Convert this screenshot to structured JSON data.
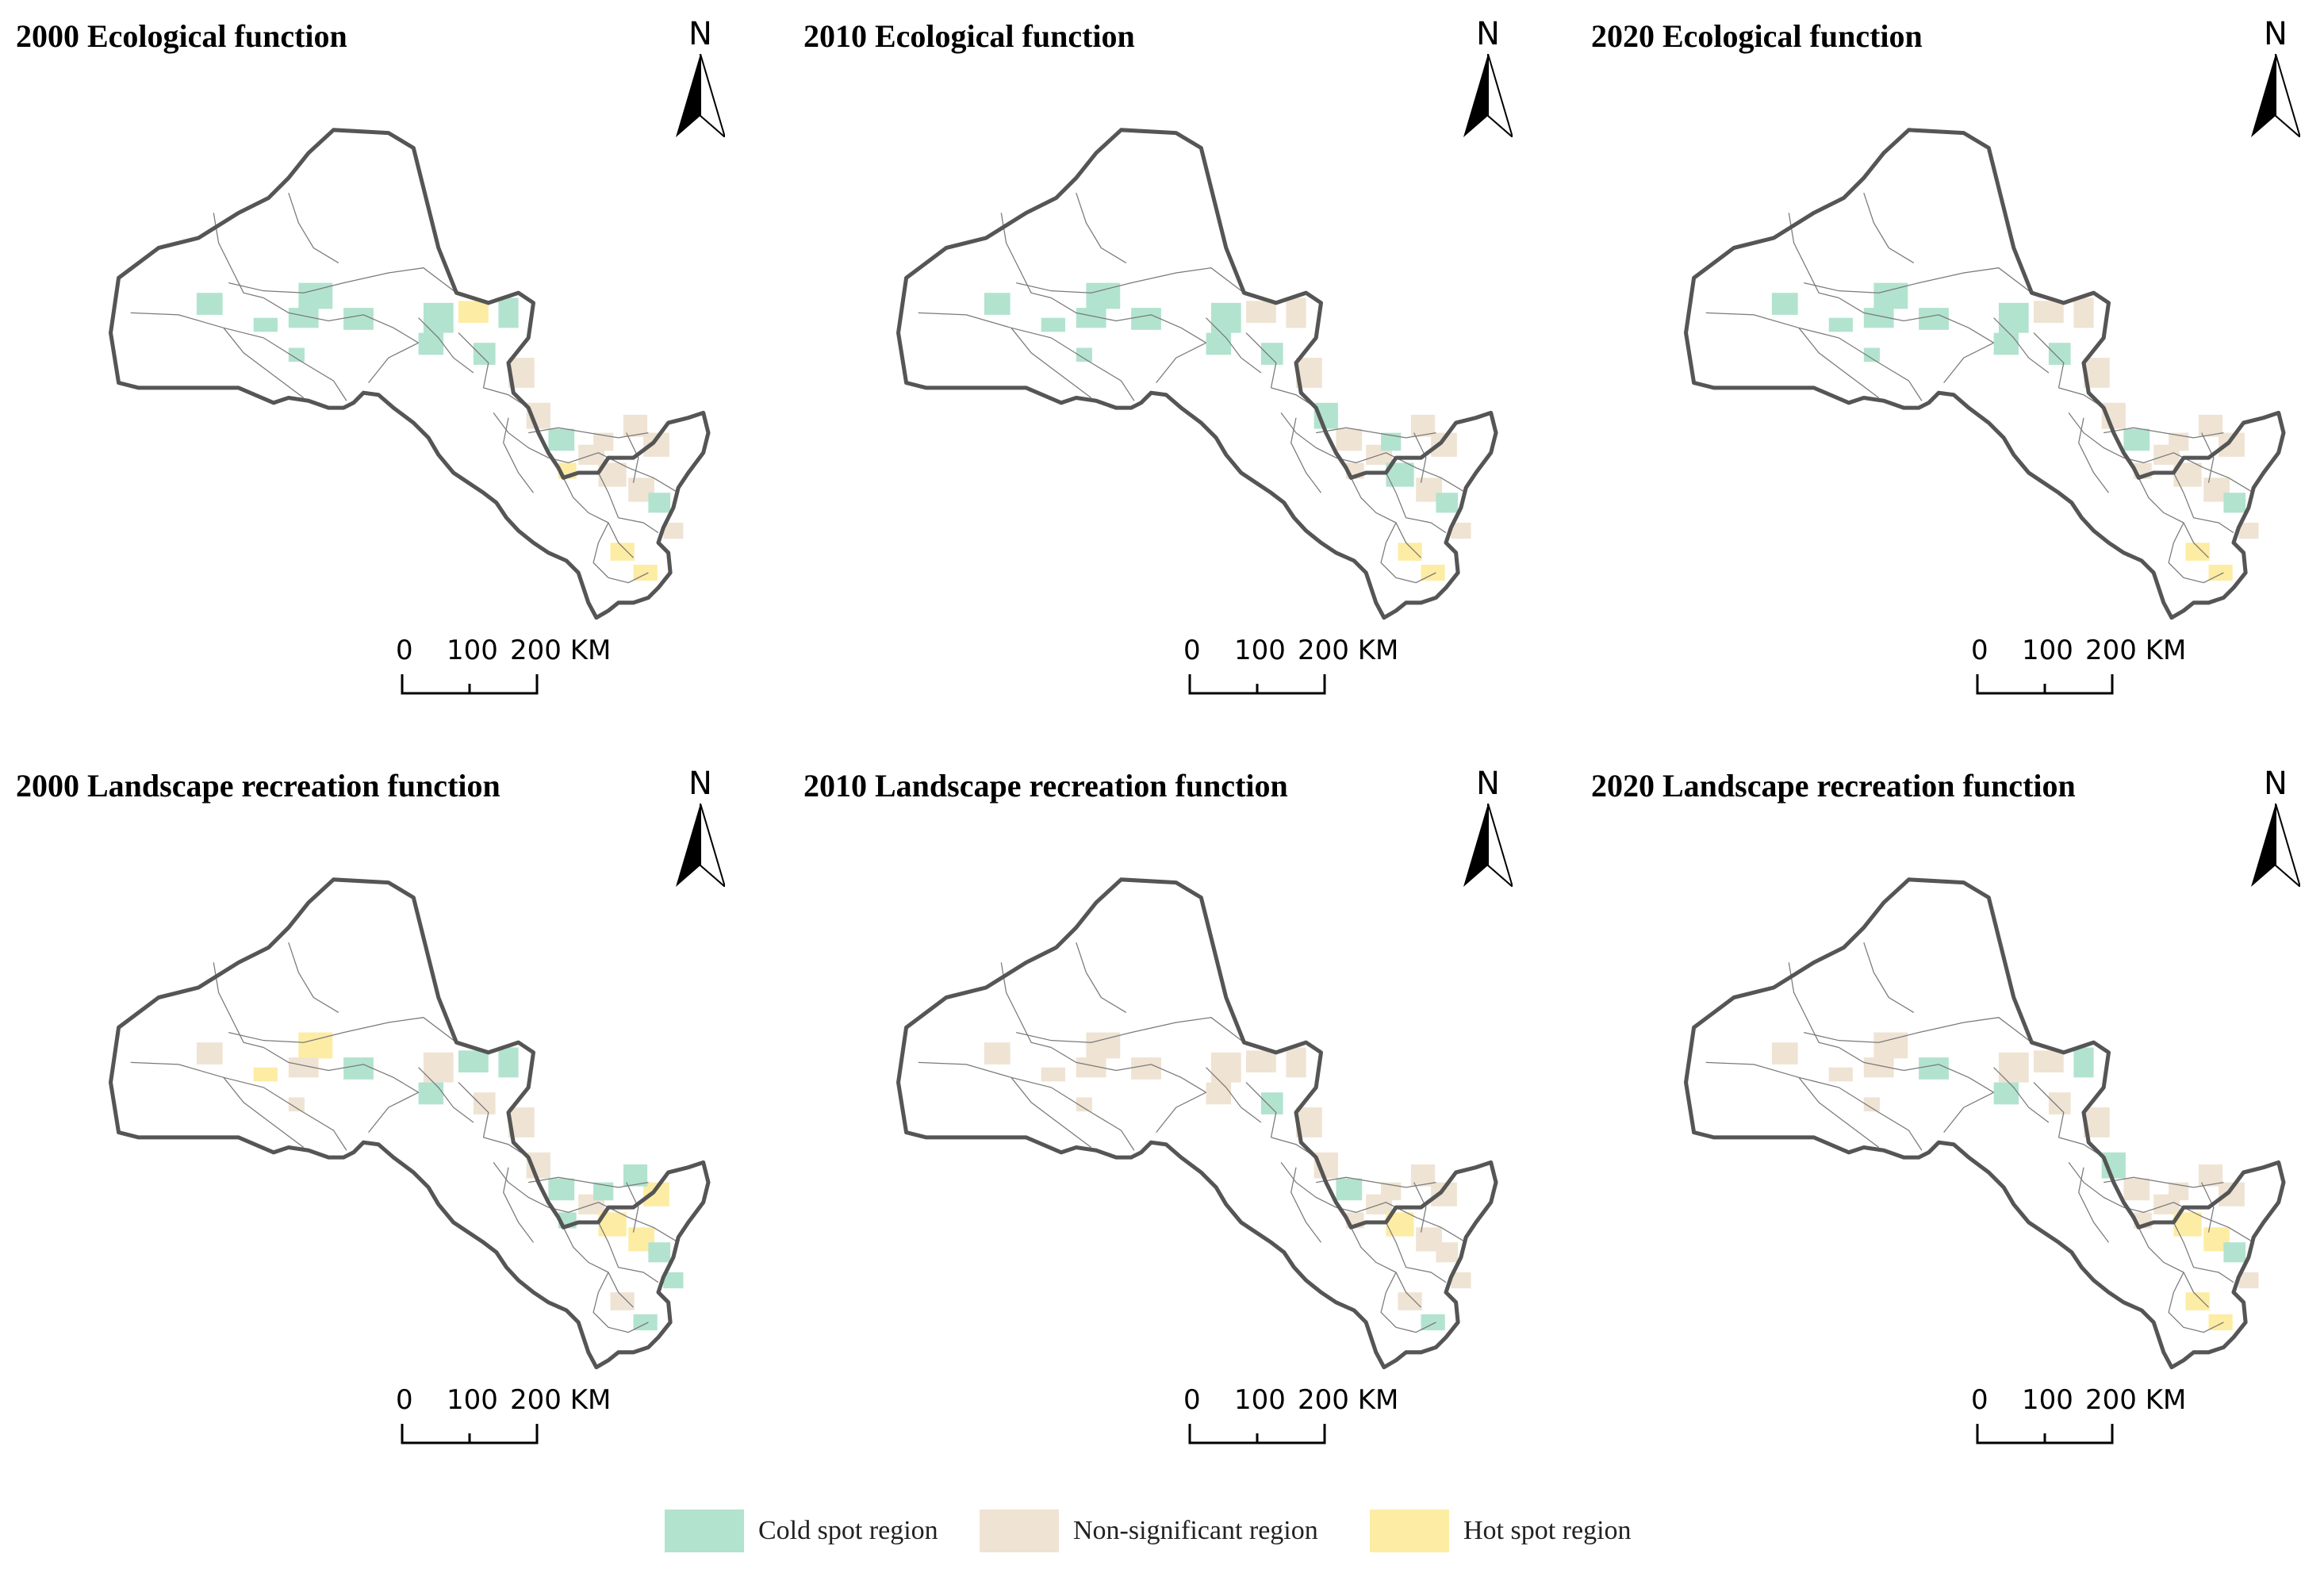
{
  "panels": [
    {
      "title": "2000 Ecological function",
      "pattern": [
        0,
        0,
        0,
        0,
        0,
        0,
        2,
        0,
        0,
        0,
        0,
        1,
        1,
        0,
        1,
        1,
        1,
        0,
        1,
        1,
        1,
        1,
        2,
        2,
        2
      ]
    },
    {
      "title": "2010 Ecological function",
      "pattern": [
        0,
        0,
        0,
        0,
        0,
        0,
        1,
        1,
        0,
        0,
        0,
        1,
        0,
        1,
        1,
        0,
        1,
        0,
        1,
        1,
        1,
        0,
        1,
        2,
        2
      ]
    },
    {
      "title": "2020 Ecological function",
      "pattern": [
        0,
        0,
        0,
        0,
        0,
        0,
        1,
        1,
        0,
        0,
        0,
        1,
        1,
        0,
        1,
        1,
        1,
        0,
        1,
        1,
        1,
        1,
        1,
        2,
        2
      ]
    },
    {
      "title": "2000 Landscape recreation function",
      "pattern": [
        1,
        2,
        1,
        0,
        2,
        1,
        0,
        0,
        1,
        0,
        1,
        1,
        1,
        0,
        1,
        2,
        2,
        0,
        0,
        2,
        0,
        0,
        0,
        1,
        0
      ]
    },
    {
      "title": "2010 Landscape recreation function",
      "pattern": [
        1,
        1,
        1,
        1,
        1,
        1,
        1,
        1,
        0,
        1,
        1,
        1,
        1,
        0,
        1,
        2,
        1,
        1,
        1,
        1,
        1,
        1,
        1,
        1,
        0
      ]
    },
    {
      "title": "2020 Landscape recreation function",
      "pattern": [
        1,
        1,
        1,
        0,
        1,
        1,
        1,
        0,
        1,
        0,
        1,
        1,
        0,
        1,
        1,
        2,
        2,
        0,
        1,
        1,
        1,
        1,
        1,
        2,
        2
      ]
    }
  ],
  "north_label": "N",
  "scale": {
    "zero": "0",
    "mid": "100",
    "max": "200 KM"
  },
  "legend": [
    {
      "label": "Cold spot region",
      "color": "#b2e3cf"
    },
    {
      "label": "Non-significant region",
      "color": "#efe3d3"
    },
    {
      "label": "Hot spot region",
      "color": "#fdeca4"
    }
  ],
  "colors": {
    "outline": "#555555",
    "inner_lines": "#7a7a7a",
    "background": "#ffffff"
  }
}
